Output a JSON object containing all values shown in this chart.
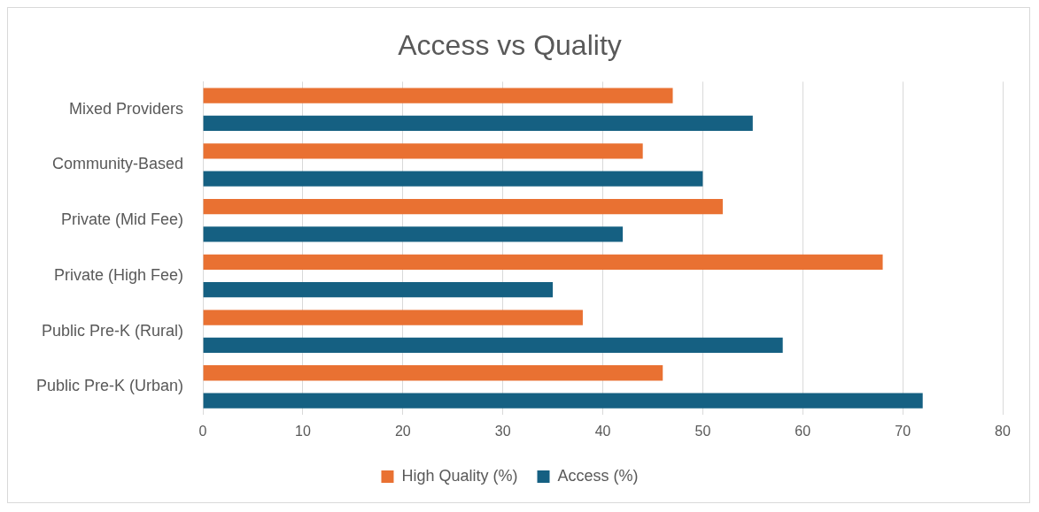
{
  "chart_data": {
    "type": "bar",
    "orientation": "horizontal",
    "title": "Access vs Quality",
    "categories": [
      "Mixed Providers",
      "Community-Based",
      "Private (Mid Fee)",
      "Private (High Fee)",
      "Public Pre-K (Rural)",
      "Public Pre-K (Urban)"
    ],
    "series": [
      {
        "name": "High Quality (%)",
        "color": "#e97132",
        "values": [
          47,
          44,
          52,
          68,
          38,
          46
        ]
      },
      {
        "name": "Access (%)",
        "color": "#156082",
        "values": [
          55,
          50,
          42,
          35,
          58,
          72
        ]
      }
    ],
    "xlim": [
      0,
      80
    ],
    "xticks": [
      0,
      10,
      20,
      30,
      40,
      50,
      60,
      70,
      80
    ],
    "grid": "x",
    "legend": "bottom"
  }
}
